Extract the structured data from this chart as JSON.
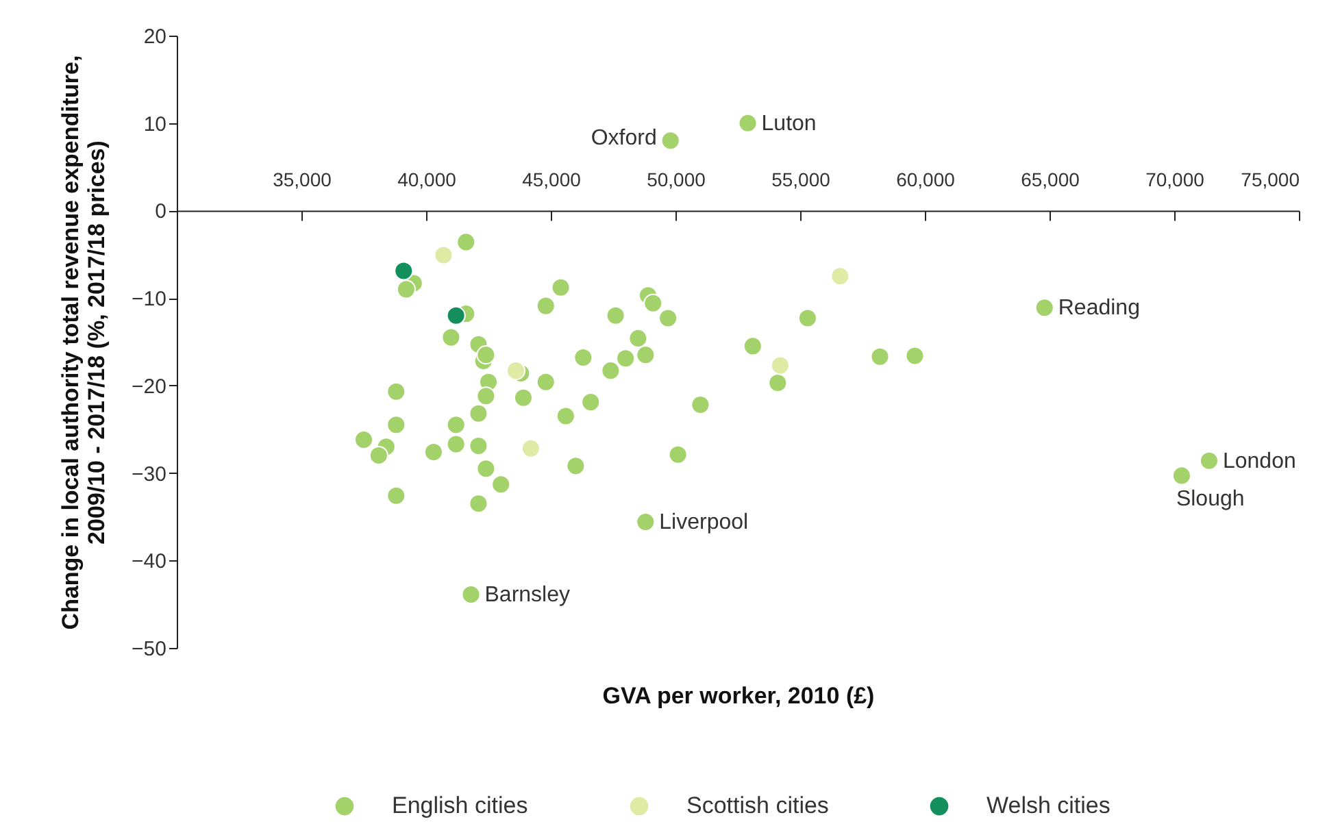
{
  "chart_data": {
    "type": "scatter",
    "xlabel": "GVA per worker, 2010 (£)",
    "ylabel": "Change in local authority total revenue expenditure, 2009/10 - 2017/18 (%, 2017/18 prices)",
    "xlim": [
      30000,
      75000
    ],
    "xticks": [
      {
        "value": 35000,
        "label": "35,000"
      },
      {
        "value": 40000,
        "label": "40,000"
      },
      {
        "value": 45000,
        "label": "45,000"
      },
      {
        "value": 50000,
        "label": "50,000"
      },
      {
        "value": 55000,
        "label": "55,000"
      },
      {
        "value": 60000,
        "label": "60,000"
      },
      {
        "value": 65000,
        "label": "65,000"
      },
      {
        "value": 70000,
        "label": "70,000"
      },
      {
        "value": 75000,
        "label": "75,000"
      }
    ],
    "ylim": [
      -50,
      20
    ],
    "yticks": [
      -50,
      -40,
      -30,
      -20,
      -10,
      0,
      10,
      20
    ],
    "grid": false,
    "legend": "bottom",
    "marker": "circle",
    "series": [
      {
        "name": "English cities",
        "color": "#a3d16a",
        "x": [
          41600,
          39500,
          39200,
          41600,
          41000,
          45400,
          44800,
          42100,
          42300,
          42400,
          42500,
          42400,
          43800,
          44800,
          43900,
          46300,
          47600,
          48900,
          49100,
          49700,
          48500,
          48000,
          48800,
          47400,
          45600,
          46600,
          38800,
          38800,
          37500,
          38400,
          38100,
          38800,
          40300,
          41200,
          41200,
          42100,
          42100,
          42400,
          43000,
          42100,
          46000,
          51000,
          50100,
          48800,
          41800,
          55300,
          53100,
          54100,
          49800,
          52900,
          58200,
          59600,
          64800,
          71400,
          70300
        ],
        "values": [
          -3.6,
          -8.3,
          -9.0,
          -11.8,
          -14.5,
          -8.8,
          -10.9,
          -15.3,
          -17.2,
          -16.5,
          -19.6,
          -21.2,
          -18.6,
          -19.6,
          -21.4,
          -16.8,
          -12.0,
          -9.7,
          -10.6,
          -12.3,
          -14.6,
          -16.9,
          -16.5,
          -18.3,
          -23.5,
          -21.9,
          -20.7,
          -24.5,
          -26.2,
          -27.0,
          -28.0,
          -32.6,
          -27.6,
          -24.5,
          -26.7,
          -23.2,
          -26.9,
          -29.5,
          -31.3,
          -33.5,
          -29.2,
          -22.2,
          -27.9,
          -35.6,
          -43.9,
          -12.3,
          -15.5,
          -19.7,
          8.0,
          10.0,
          -16.7,
          -16.6,
          -11.1,
          -28.6,
          -30.3
        ]
      },
      {
        "name": "Scottish cities",
        "color": "#dfeaa5",
        "x": [
          40700,
          43600,
          44200,
          54200,
          56600
        ],
        "values": [
          -5.1,
          -18.3,
          -27.2,
          -17.7,
          -7.5
        ]
      },
      {
        "name": "Welsh cities",
        "color": "#138f5e",
        "x": [
          39100,
          41200
        ],
        "values": [
          -6.9,
          -12.0
        ]
      }
    ],
    "annotations": [
      {
        "text": "Oxford",
        "x": 49800,
        "y": 8.0
      },
      {
        "text": "Luton",
        "x": 52900,
        "y": 10.0
      },
      {
        "text": "Reading",
        "x": 64800,
        "y": -11.1
      },
      {
        "text": "London",
        "x": 71400,
        "y": -28.6
      },
      {
        "text": "Slough",
        "x": 70300,
        "y": -30.3
      },
      {
        "text": "Liverpool",
        "x": 48800,
        "y": -35.6
      },
      {
        "text": "Barnsley",
        "x": 41800,
        "y": -43.9
      }
    ]
  }
}
